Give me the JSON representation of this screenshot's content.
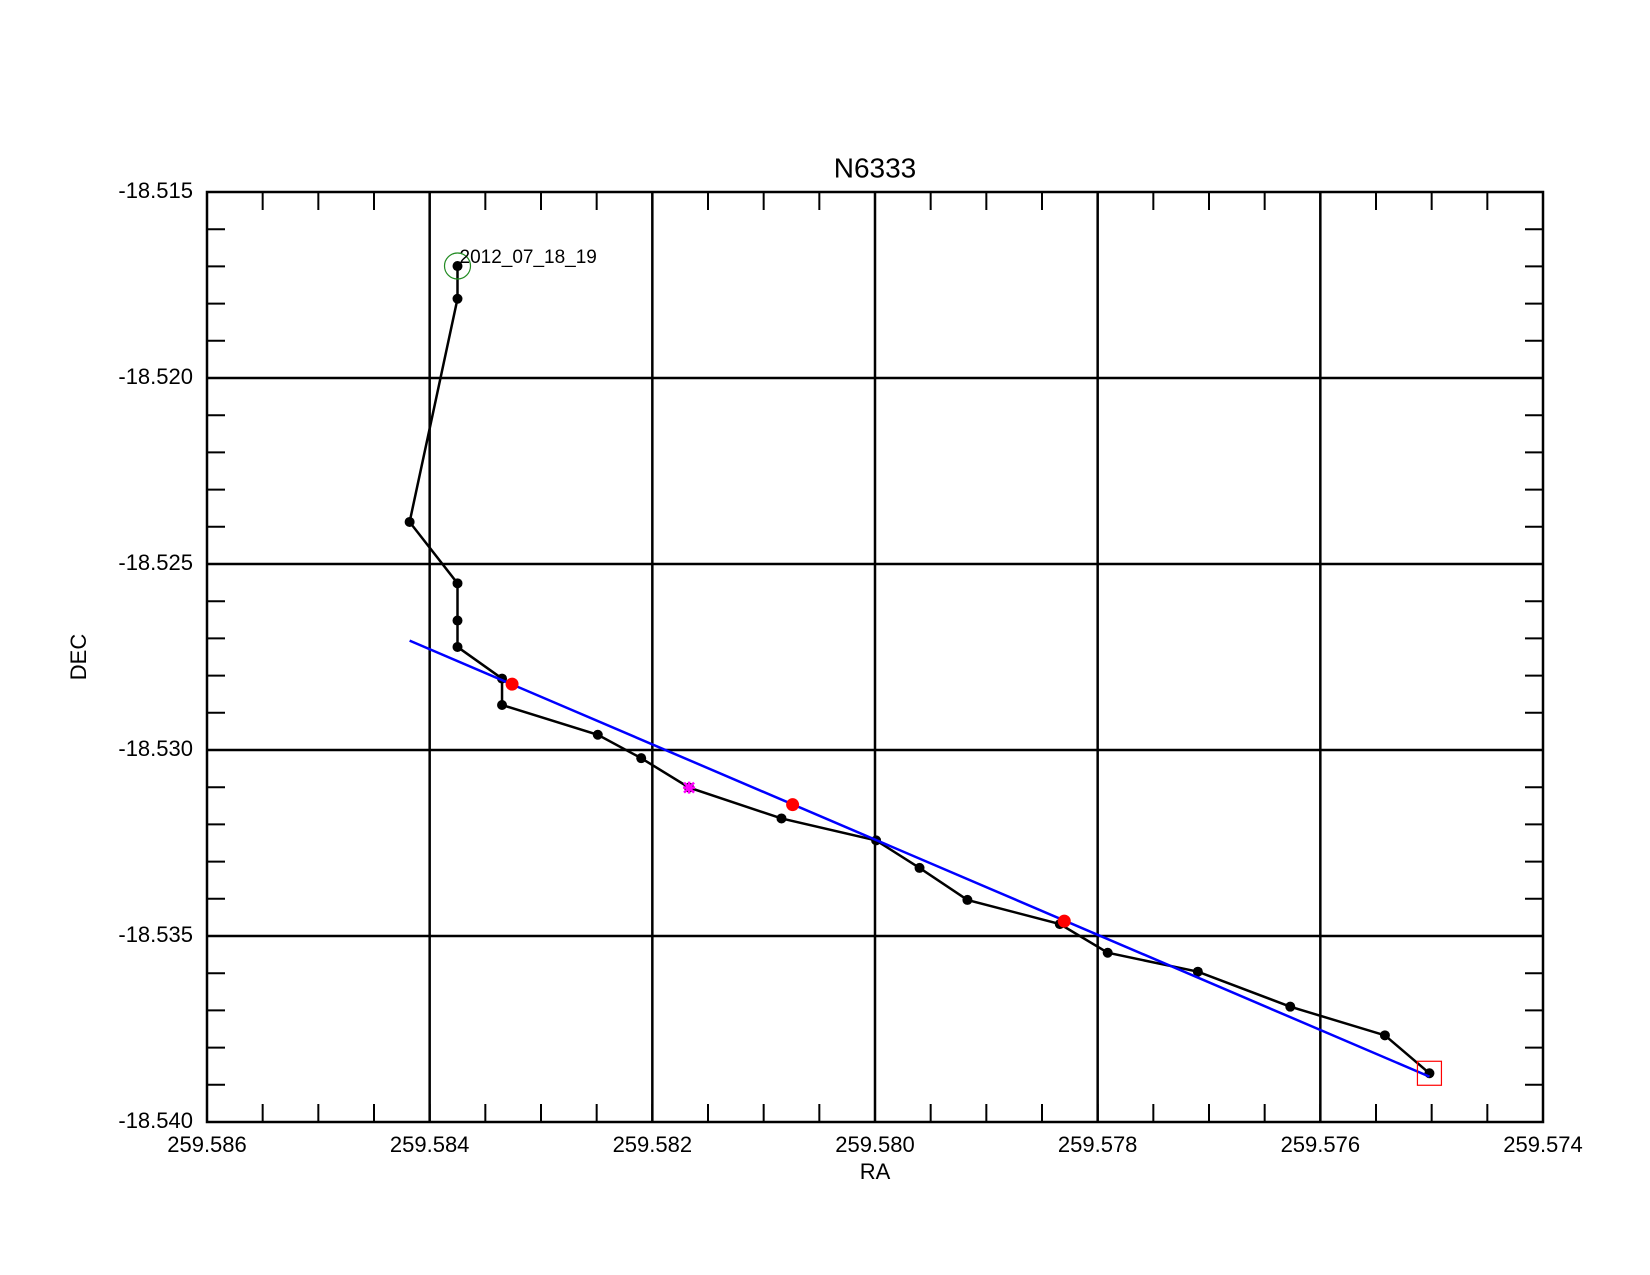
{
  "chart_data": {
    "type": "line",
    "title": "N6333",
    "x_label": "RA",
    "y_label": "DEC",
    "xlim": [
      259.586,
      259.574
    ],
    "xticks": [
      259.586,
      259.584,
      259.582,
      {
        "value": 259.58,
        "label": "259.580"
      },
      259.578,
      259.576,
      259.574
    ],
    "xminorticks": [
      259.5855,
      259.585,
      259.5845,
      259.5835,
      259.583,
      259.5825,
      259.5815,
      259.581,
      259.5805,
      259.5795,
      259.579,
      259.5785,
      259.5775,
      259.577,
      259.5765,
      259.5755,
      259.575,
      259.5745
    ],
    "ylim": [
      -18.54,
      -18.515
    ],
    "yticks": [
      {
        "value": -18.54,
        "label": "-18.540"
      },
      -18.535,
      {
        "value": -18.53,
        "label": "-18.530"
      },
      -18.525,
      {
        "value": -18.52,
        "label": "-18.520"
      },
      -18.515
    ],
    "yminorticks": [
      -18.516,
      -18.517,
      -18.518,
      -18.519,
      -18.521,
      -18.522,
      -18.523,
      -18.524,
      -18.526,
      -18.527,
      -18.528,
      -18.529,
      -18.531,
      -18.532,
      -18.533,
      -18.534,
      -18.536,
      -18.537,
      -18.538,
      -18.539
    ],
    "grid": true,
    "annotation": "2012_07_18_19",
    "series": [
      {
        "style": "line-dots",
        "color": "#000000",
        "x": [
          259.58375,
          259.58375,
          259.58418,
          259.58375,
          259.58375,
          259.58375,
          259.58335,
          259.58335,
          259.58249,
          259.5821,
          259.58167,
          259.58084,
          259.57999,
          259.5796,
          259.57917,
          259.57834,
          259.57791,
          259.5771,
          259.57627,
          259.57542,
          259.57502
        ],
        "values": [
          -18.51699,
          -18.51787,
          -18.52387,
          -18.52552,
          -18.52652,
          -18.52723,
          -18.52808,
          -18.52879,
          -18.52959,
          -18.53022,
          -18.53101,
          -18.53184,
          -18.53243,
          -18.53317,
          -18.53403,
          -18.53468,
          -18.53545,
          -18.53596,
          -18.5369,
          -18.53767,
          -18.53869
        ]
      },
      {
        "style": "line",
        "color": "#0000ff",
        "x": [
          259.58418,
          259.57502
        ],
        "values": [
          -18.52706,
          -18.53878
        ]
      },
      {
        "style": "dots",
        "color": "#ff0000",
        "x": [
          259.58326,
          259.58074,
          259.5783
        ],
        "values": [
          -18.52823,
          -18.53147,
          -18.5346
        ]
      },
      {
        "style": "star",
        "color": "#ff00ff",
        "x": [
          259.58167
        ],
        "values": [
          -18.53101
        ]
      },
      {
        "style": "circle",
        "color": "#228b22",
        "x": [
          259.58375
        ],
        "values": [
          -18.51699
        ]
      },
      {
        "style": "square",
        "color": "#ff0000",
        "x": [
          259.57502
        ],
        "values": [
          -18.53869
        ]
      }
    ]
  }
}
